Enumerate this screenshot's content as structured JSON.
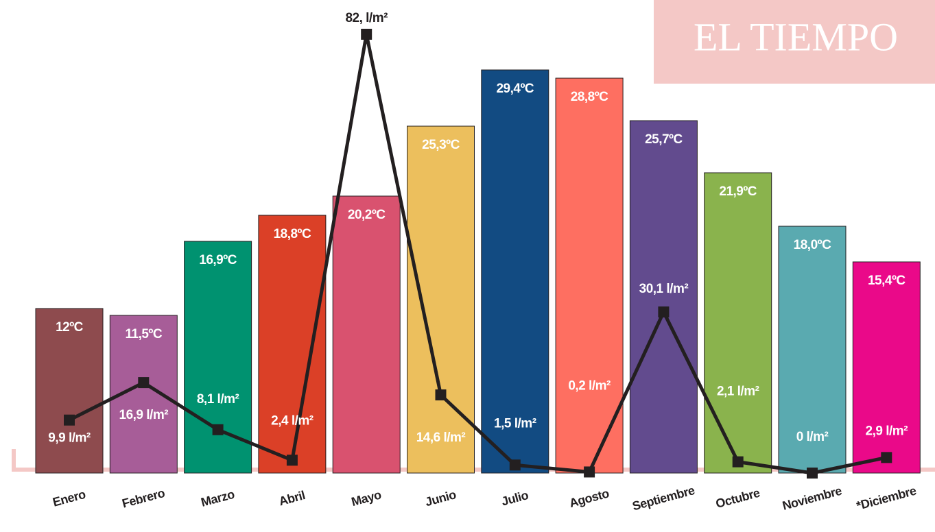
{
  "chart_data": {
    "type": "bar",
    "logo": "EL TIEMPO",
    "categories": [
      "Enero",
      "Febrero",
      "Marzo",
      "Abril",
      "Mayo",
      "Junio",
      "Julio",
      "Agosto",
      "Septiembre",
      "Octubre",
      "Noviembre",
      "*Diciembre"
    ],
    "ylim": [
      0,
      34.5
    ],
    "y2lim": [
      0,
      88.4
    ],
    "series": [
      {
        "type": "bar",
        "colors": [
          "#8e4b4e",
          "#a75d98",
          "#009270",
          "#db4027",
          "#d9526f",
          "#ecbf5d",
          "#124b82",
          "#fe6f61",
          "#624b8e",
          "#8ab34d",
          "#5aaab0",
          "#ea0989"
        ],
        "values": [
          12,
          11.5,
          16.9,
          18.8,
          20.2,
          25.3,
          29.4,
          28.8,
          25.7,
          21.9,
          18.0,
          15.4
        ],
        "value_labels": [
          "12ºC",
          "11,5ºC",
          "16,9ºC",
          "18,8ºC",
          "20,2ºC",
          "25,3ºC",
          "29,4ºC",
          "28,8ºC",
          "25,7ºC",
          "21,9ºC",
          "18,0ºC",
          "15,4ºC"
        ]
      },
      {
        "type": "line",
        "axis": "y2",
        "color": "#231f20",
        "values": [
          9.9,
          16.9,
          8.1,
          2.4,
          82,
          14.6,
          1.5,
          0.2,
          30.1,
          2.1,
          0,
          2.9
        ],
        "value_labels": [
          "9,9 l/m²",
          "16,9 l/m²",
          "8,1 l/m²",
          "2,4 l/m²",
          "82, l/m²",
          "14,6 l/m²",
          "1,5 l/m²",
          "0,2 l/m²",
          "30,1 l/m²",
          "2,1 l/m²",
          "0 l/m²",
          "2,9 l/m²"
        ]
      }
    ]
  }
}
